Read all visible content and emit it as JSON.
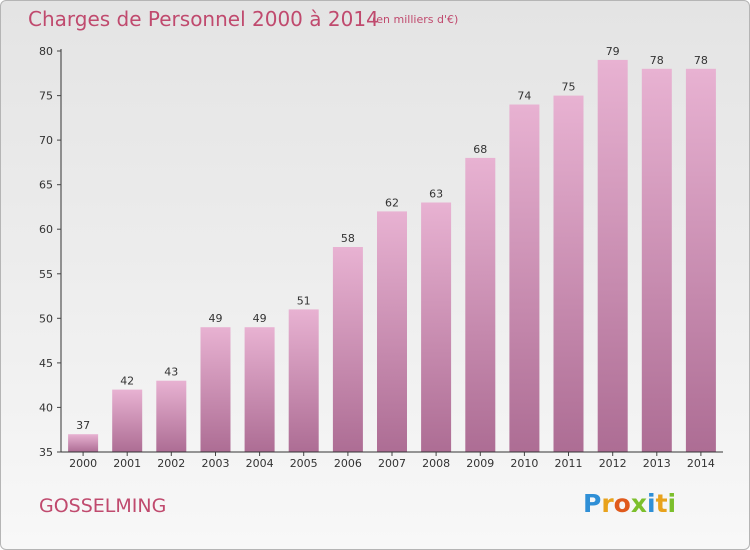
{
  "header": {
    "title": "Charges de Personnel 2000 à 2014",
    "subtitle": "(en milliers d'€)"
  },
  "footer": {
    "commune": "GOSSELMING",
    "logo_letters": [
      "P",
      "r",
      "o",
      "x",
      "i",
      "t",
      "i"
    ],
    "logo_colors": [
      "#2f8fd6",
      "#e8a21c",
      "#e05a1c",
      "#7cbf2c",
      "#2f8fd6",
      "#e8a21c",
      "#7cbf2c"
    ]
  },
  "colors": {
    "bar_top": "#e8b2d2",
    "bar_bottom": "#ad6d94",
    "accent": "#c04a6e"
  },
  "chart_data": {
    "type": "bar",
    "title": "Charges de Personnel 2000 à 2014",
    "subtitle": "(en milliers d'€)",
    "categories": [
      "2000",
      "2001",
      "2002",
      "2003",
      "2004",
      "2005",
      "2006",
      "2007",
      "2008",
      "2009",
      "2010",
      "2011",
      "2012",
      "2013",
      "2014"
    ],
    "values": [
      37,
      42,
      43,
      49,
      49,
      51,
      58,
      62,
      63,
      68,
      74,
      75,
      79,
      78,
      78
    ],
    "ylim": [
      35,
      80
    ],
    "yticks": [
      35,
      40,
      45,
      50,
      55,
      60,
      65,
      70,
      75,
      80
    ],
    "xlabel": "",
    "ylabel": "",
    "grid": false,
    "legend": "none"
  }
}
